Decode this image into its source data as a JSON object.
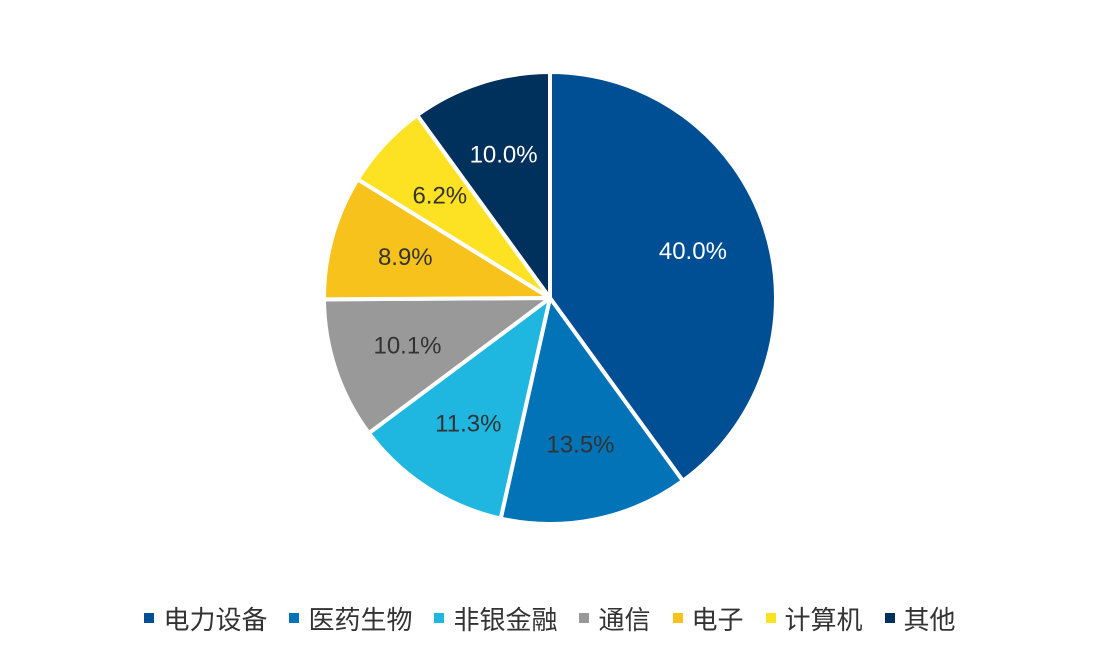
{
  "chart_data": {
    "type": "pie",
    "categories": [
      "电力设备",
      "医药生物",
      "非银金融",
      "通信",
      "电子",
      "计算机",
      "其他"
    ],
    "values": [
      40.0,
      13.5,
      11.3,
      10.1,
      8.9,
      6.2,
      10.0
    ],
    "data_labels": [
      "40.0%",
      "13.5%",
      "11.3%",
      "10.1%",
      "8.9%",
      "6.2%",
      "10.0%"
    ],
    "colors": [
      "#004E94",
      "#0173B6",
      "#1FB6E0",
      "#999999",
      "#F7C21B",
      "#FDE223",
      "#00305C"
    ],
    "label_colors": [
      "#ffffff",
      "#333333",
      "#333333",
      "#333333",
      "#333333",
      "#333333",
      "#ffffff"
    ],
    "start_angle": "12 o'clock",
    "direction": "clockwise",
    "legend_position": "bottom"
  }
}
